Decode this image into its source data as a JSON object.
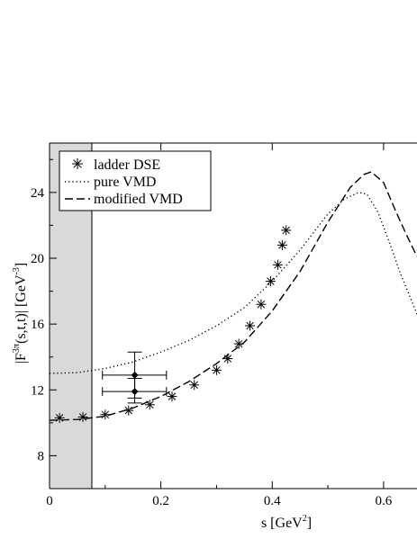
{
  "chart_data": {
    "type": "scatter",
    "xlabel": {
      "base": "s  [GeV",
      "sup": "2",
      "end": "]"
    },
    "ylabel": {
      "pre": "|F",
      "sup": "3π",
      "mid": "(s,t,t)|  [GeV",
      "sup2": "-3",
      "end": "]"
    },
    "xlim": [
      0,
      0.66
    ],
    "ylim": [
      6,
      27
    ],
    "xticks": [
      0,
      0.2,
      0.4,
      0.6
    ],
    "xtick_labels": [
      "0",
      "0.2",
      "0.4",
      "0.6"
    ],
    "yticks": [
      8,
      12,
      16,
      20,
      24
    ],
    "ytick_labels": [
      "8",
      "12",
      "16",
      "20",
      "24"
    ],
    "shaded_region": {
      "x": [
        0,
        0.076
      ],
      "color": "#d9d9d9"
    },
    "legend": {
      "position": "top-left",
      "entries": [
        {
          "label": "ladder DSE",
          "style": "asterisk"
        },
        {
          "label": "pure VMD",
          "style": "dotted"
        },
        {
          "label": "modified VMD",
          "style": "dashed"
        }
      ]
    },
    "series": [
      {
        "name": "ladder DSE",
        "style": "asterisk",
        "x": [
          0.018,
          0.06,
          0.1,
          0.142,
          0.18,
          0.22,
          0.26,
          0.3,
          0.32,
          0.34,
          0.36,
          0.38,
          0.397,
          0.41,
          0.418,
          0.425
        ],
        "y": [
          10.3,
          10.35,
          10.5,
          10.75,
          11.1,
          11.6,
          12.3,
          13.2,
          13.9,
          14.8,
          15.9,
          17.2,
          18.6,
          19.6,
          20.8,
          21.7
        ]
      },
      {
        "name": "pure VMD",
        "style": "dotted",
        "x": [
          0,
          0.05,
          0.1,
          0.15,
          0.2,
          0.25,
          0.3,
          0.35,
          0.4,
          0.45,
          0.5,
          0.53,
          0.555,
          0.57,
          0.59,
          0.61,
          0.63,
          0.66
        ],
        "y": [
          13.0,
          13.05,
          13.3,
          13.7,
          14.3,
          15.0,
          15.9,
          17.0,
          18.6,
          20.5,
          22.7,
          23.6,
          24.0,
          23.9,
          22.8,
          21.0,
          19.1,
          16.6
        ]
      },
      {
        "name": "modified VMD",
        "style": "dashed",
        "x": [
          0,
          0.05,
          0.1,
          0.15,
          0.2,
          0.25,
          0.3,
          0.35,
          0.4,
          0.45,
          0.5,
          0.54,
          0.565,
          0.578,
          0.6,
          0.62,
          0.64,
          0.66
        ],
        "y": [
          10.15,
          10.2,
          10.4,
          10.9,
          11.6,
          12.5,
          13.6,
          14.9,
          16.8,
          19.2,
          22.2,
          24.3,
          25.1,
          25.25,
          24.6,
          23.0,
          21.5,
          20.1
        ]
      }
    ],
    "data_points": [
      {
        "x": 0.153,
        "y": 12.9,
        "xerr": [
          0.095,
          0.21
        ],
        "yerr": [
          11.5,
          14.3
        ]
      },
      {
        "x": 0.153,
        "y": 11.9,
        "xerr": [
          0.095,
          0.21
        ],
        "yerr": [
          11.2,
          12.7
        ]
      }
    ]
  }
}
